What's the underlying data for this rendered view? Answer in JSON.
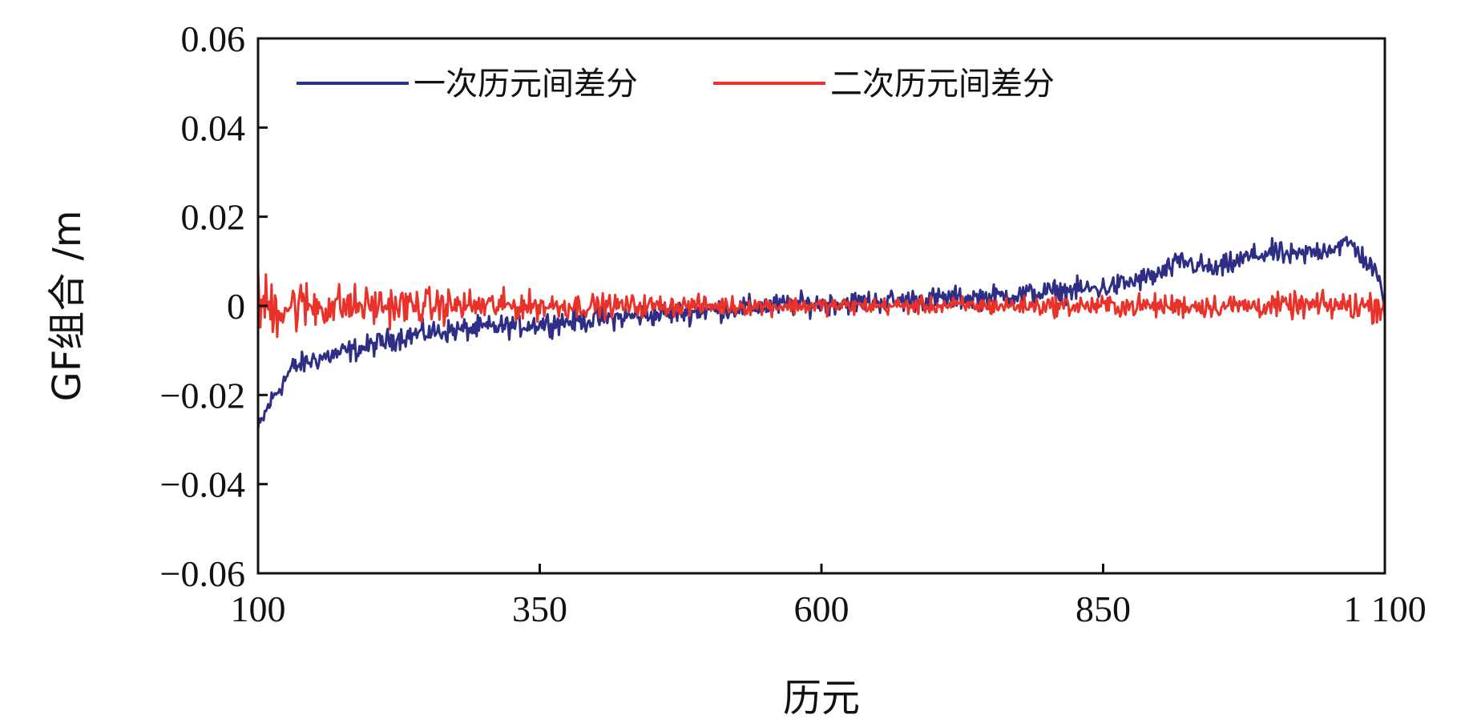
{
  "chart_data": {
    "type": "line",
    "title": "",
    "xlabel": "历元",
    "ylabel": "GF组合 /m",
    "xlim": [
      100,
      1100
    ],
    "ylim": [
      -0.06,
      0.06
    ],
    "x_ticks": [
      100,
      350,
      600,
      850,
      1100
    ],
    "x_tick_labels": [
      "100",
      "350",
      "600",
      "850",
      "1 100"
    ],
    "y_ticks": [
      0.06,
      0.04,
      0.02,
      0,
      -0.02,
      -0.04,
      -0.06
    ],
    "y_tick_labels": [
      "0.06",
      "0.04",
      "0.02",
      "0",
      "−0.02",
      "−0.04",
      "−0.06"
    ],
    "grid": false,
    "legend_position": "top-left",
    "series": [
      {
        "name": "一次历元间差分",
        "color": "#2e2e86",
        "noise": 0.0022,
        "x": [
          100,
          110,
          120,
          130,
          150,
          175,
          200,
          225,
          250,
          275,
          300,
          325,
          350,
          375,
          400,
          450,
          500,
          550,
          600,
          650,
          700,
          750,
          800,
          850,
          870,
          900,
          920,
          950,
          980,
          1000,
          1020,
          1050,
          1070,
          1090,
          1100
        ],
        "values": [
          -0.028,
          -0.022,
          -0.018,
          -0.014,
          -0.012,
          -0.0105,
          -0.009,
          -0.007,
          -0.006,
          -0.0055,
          -0.005,
          -0.0045,
          -0.004,
          -0.0035,
          -0.003,
          -0.002,
          -0.001,
          0.0,
          0.0005,
          0.001,
          0.0015,
          0.002,
          0.003,
          0.004,
          0.005,
          0.007,
          0.01,
          0.008,
          0.011,
          0.012,
          0.011,
          0.013,
          0.014,
          0.008,
          0.002
        ]
      },
      {
        "name": "二次历元间差分",
        "color": "#e8322a",
        "noise": 0.0,
        "x": [
          100,
          120,
          150,
          200,
          250,
          300,
          350,
          400,
          500,
          600,
          700,
          800,
          900,
          1000,
          1050,
          1080,
          1100
        ],
        "values": [
          0,
          0,
          0,
          0,
          0,
          0,
          0,
          0,
          0,
          0,
          0,
          0,
          0,
          0,
          0,
          0,
          0
        ],
        "amplitude": [
          0.009,
          0.008,
          0.006,
          0.005,
          0.0045,
          0.004,
          0.0035,
          0.003,
          0.0025,
          0.0022,
          0.0022,
          0.0025,
          0.003,
          0.003,
          0.0035,
          0.004,
          0.004
        ]
      }
    ]
  }
}
